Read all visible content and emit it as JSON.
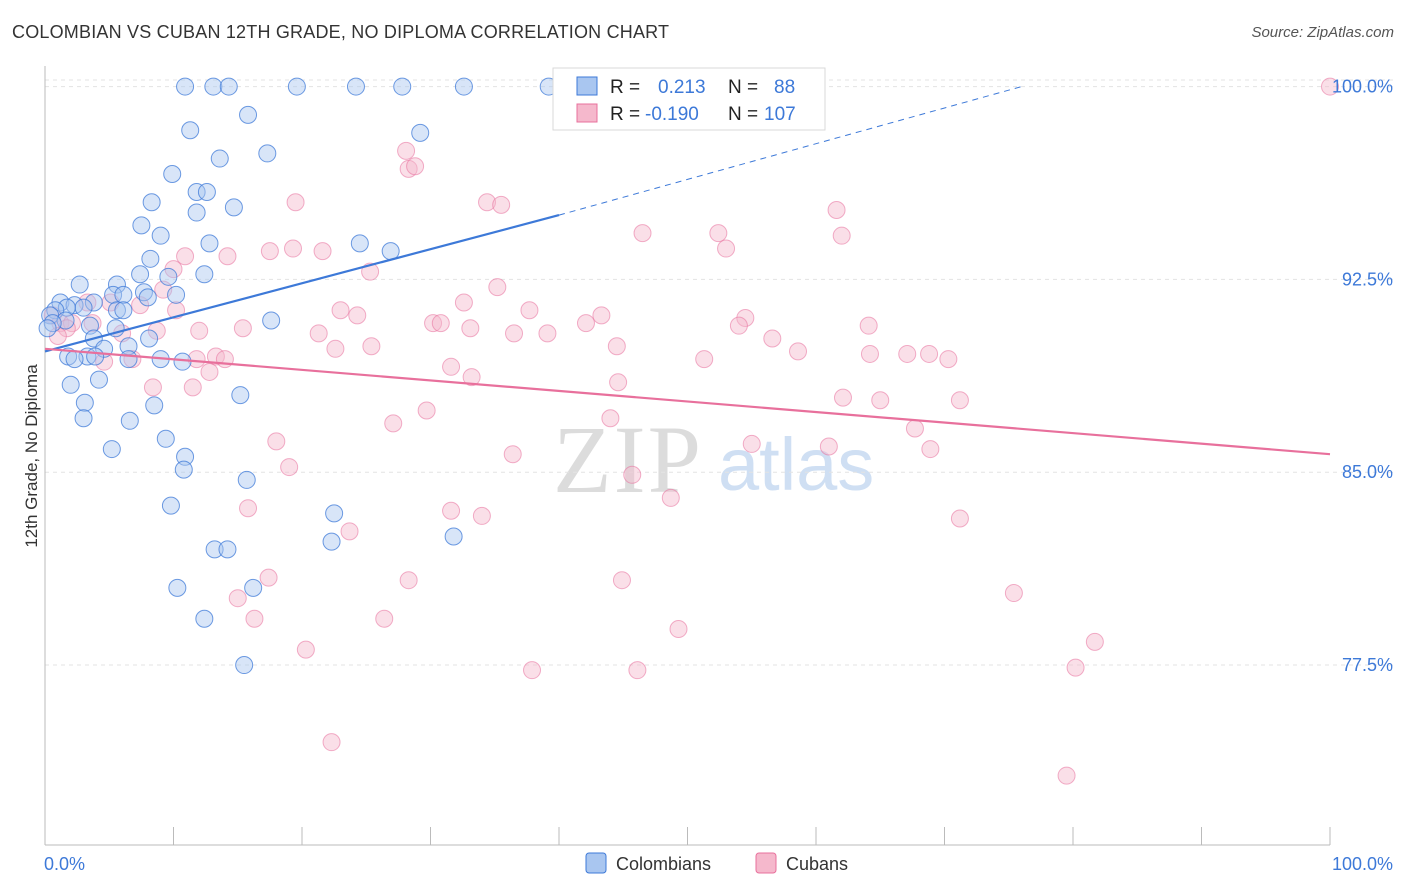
{
  "title": "COLOMBIAN VS CUBAN 12TH GRADE, NO DIPLOMA CORRELATION CHART",
  "source": "Source: ZipAtlas.com",
  "watermark": {
    "zip": "ZIP",
    "atlas": "atlas"
  },
  "colors": {
    "blue": "#3d79d8",
    "blue_fill": "#a9c6f0",
    "pink": "#e8709c",
    "pink_fill": "#f5b8cc",
    "axis_label": "#3d79d8"
  },
  "stats": {
    "row1": {
      "r_label": "R =",
      "r_value": "0.213",
      "n_label": "N =",
      "n_value": "88"
    },
    "row2": {
      "r_label": "R =",
      "r_value": "-0.190",
      "n_label": "N =",
      "n_value": "107"
    }
  },
  "legend": {
    "series1": "Colombians",
    "series2": "Cubans"
  },
  "chart_data": {
    "type": "scatter",
    "ylabel": "12th Grade, No Diploma",
    "xlabel": "",
    "x_tick_labels": [
      "0.0%",
      "100.0%"
    ],
    "y_tick_labels": [
      "100.0%",
      "92.5%",
      "85.0%",
      "77.5%"
    ],
    "y_ticks": [
      100.0,
      92.5,
      85.0,
      77.5
    ],
    "xlim": [
      0,
      100
    ],
    "ylim": [
      70.5,
      100.8
    ],
    "grid": true,
    "legend_position": "bottom-center",
    "series": [
      {
        "name": "Colombians",
        "r": 0.213,
        "n": 88,
        "trend": {
          "x0": 0,
          "y0": 89.7,
          "x1": 40,
          "y1": 95.0,
          "dashed_to": {
            "x": 76,
            "y": 100.0
          }
        },
        "points": [
          [
            10.9,
            100.0
          ],
          [
            13.1,
            100.0
          ],
          [
            14.3,
            100.0
          ],
          [
            19.6,
            100.0
          ],
          [
            24.2,
            100.0
          ],
          [
            27.8,
            100.0
          ],
          [
            32.6,
            100.0
          ],
          [
            39.2,
            100.0
          ],
          [
            11.3,
            98.3
          ],
          [
            15.8,
            98.9
          ],
          [
            29.2,
            98.2
          ],
          [
            13.6,
            97.2
          ],
          [
            17.3,
            97.4
          ],
          [
            9.9,
            96.6
          ],
          [
            11.8,
            95.9
          ],
          [
            12.6,
            95.9
          ],
          [
            8.3,
            95.5
          ],
          [
            11.8,
            95.1
          ],
          [
            14.7,
            95.3
          ],
          [
            7.5,
            94.6
          ],
          [
            9.0,
            94.2
          ],
          [
            12.8,
            93.9
          ],
          [
            24.5,
            93.9
          ],
          [
            26.9,
            93.6
          ],
          [
            8.2,
            93.3
          ],
          [
            7.4,
            92.7
          ],
          [
            9.6,
            92.6
          ],
          [
            12.4,
            92.7
          ],
          [
            2.7,
            92.3
          ],
          [
            5.6,
            92.3
          ],
          [
            7.7,
            92.0
          ],
          [
            5.3,
            91.9
          ],
          [
            6.1,
            91.9
          ],
          [
            3.8,
            91.6
          ],
          [
            8.0,
            91.8
          ],
          [
            10.2,
            91.9
          ],
          [
            1.2,
            91.6
          ],
          [
            2.3,
            91.5
          ],
          [
            3.0,
            91.4
          ],
          [
            1.7,
            91.4
          ],
          [
            0.8,
            91.3
          ],
          [
            0.4,
            91.1
          ],
          [
            5.6,
            91.3
          ],
          [
            6.1,
            91.3
          ],
          [
            1.6,
            90.9
          ],
          [
            0.6,
            90.8
          ],
          [
            0.2,
            90.6
          ],
          [
            3.5,
            90.7
          ],
          [
            5.5,
            90.6
          ],
          [
            17.6,
            90.9
          ],
          [
            3.8,
            90.2
          ],
          [
            8.1,
            90.2
          ],
          [
            6.5,
            89.9
          ],
          [
            4.6,
            89.8
          ],
          [
            1.8,
            89.5
          ],
          [
            3.3,
            89.5
          ],
          [
            2.3,
            89.4
          ],
          [
            3.9,
            89.5
          ],
          [
            6.5,
            89.4
          ],
          [
            9.0,
            89.4
          ],
          [
            10.7,
            89.3
          ],
          [
            2.0,
            88.4
          ],
          [
            4.2,
            88.6
          ],
          [
            15.2,
            88.0
          ],
          [
            8.5,
            87.6
          ],
          [
            3.1,
            87.7
          ],
          [
            3.0,
            87.1
          ],
          [
            6.6,
            87.0
          ],
          [
            9.4,
            86.3
          ],
          [
            5.2,
            85.9
          ],
          [
            10.9,
            85.6
          ],
          [
            15.7,
            84.7
          ],
          [
            10.8,
            85.1
          ],
          [
            9.8,
            83.7
          ],
          [
            22.5,
            83.4
          ],
          [
            31.8,
            82.5
          ],
          [
            22.3,
            82.3
          ],
          [
            13.2,
            82.0
          ],
          [
            14.2,
            82.0
          ],
          [
            10.3,
            80.5
          ],
          [
            16.2,
            80.5
          ],
          [
            12.4,
            79.3
          ],
          [
            15.5,
            77.5
          ]
        ]
      },
      {
        "name": "Cubans",
        "r": -0.19,
        "n": 107,
        "trend": {
          "x0": 0,
          "y0": 89.8,
          "x1": 100,
          "y1": 85.7
        },
        "points": [
          [
            100.0,
            100.0
          ],
          [
            28.1,
            97.5
          ],
          [
            28.3,
            96.8
          ],
          [
            28.8,
            96.9
          ],
          [
            34.4,
            95.5
          ],
          [
            35.5,
            95.4
          ],
          [
            19.5,
            95.5
          ],
          [
            61.6,
            95.2
          ],
          [
            46.5,
            94.3
          ],
          [
            52.4,
            94.3
          ],
          [
            62.0,
            94.2
          ],
          [
            53.0,
            93.7
          ],
          [
            17.5,
            93.6
          ],
          [
            19.3,
            93.7
          ],
          [
            21.6,
            93.6
          ],
          [
            10.9,
            93.4
          ],
          [
            14.2,
            93.4
          ],
          [
            10.0,
            92.9
          ],
          [
            25.3,
            92.8
          ],
          [
            35.2,
            92.2
          ],
          [
            9.2,
            92.1
          ],
          [
            3.3,
            91.6
          ],
          [
            5.1,
            91.6
          ],
          [
            7.4,
            91.5
          ],
          [
            10.2,
            91.3
          ],
          [
            23.0,
            91.3
          ],
          [
            24.3,
            91.1
          ],
          [
            32.6,
            91.6
          ],
          [
            37.7,
            91.3
          ],
          [
            43.3,
            91.1
          ],
          [
            42.1,
            90.8
          ],
          [
            30.2,
            90.8
          ],
          [
            30.8,
            90.8
          ],
          [
            54.5,
            91.0
          ],
          [
            54.0,
            90.7
          ],
          [
            64.1,
            90.7
          ],
          [
            0.6,
            91.1
          ],
          [
            1.2,
            90.8
          ],
          [
            2.1,
            90.8
          ],
          [
            3.7,
            90.8
          ],
          [
            1.7,
            90.6
          ],
          [
            1.0,
            90.3
          ],
          [
            6.0,
            90.4
          ],
          [
            8.7,
            90.5
          ],
          [
            12.0,
            90.5
          ],
          [
            15.4,
            90.6
          ],
          [
            21.3,
            90.4
          ],
          [
            33.1,
            90.6
          ],
          [
            36.5,
            90.4
          ],
          [
            39.1,
            90.4
          ],
          [
            22.6,
            89.8
          ],
          [
            25.4,
            89.9
          ],
          [
            44.5,
            89.9
          ],
          [
            56.6,
            90.2
          ],
          [
            58.6,
            89.7
          ],
          [
            64.2,
            89.6
          ],
          [
            67.1,
            89.6
          ],
          [
            68.8,
            89.6
          ],
          [
            70.3,
            89.4
          ],
          [
            4.6,
            89.3
          ],
          [
            6.8,
            89.4
          ],
          [
            11.8,
            89.4
          ],
          [
            13.3,
            89.5
          ],
          [
            14.0,
            89.4
          ],
          [
            12.8,
            88.9
          ],
          [
            31.6,
            89.1
          ],
          [
            33.2,
            88.7
          ],
          [
            44.6,
            88.5
          ],
          [
            51.3,
            89.4
          ],
          [
            8.4,
            88.3
          ],
          [
            11.5,
            88.3
          ],
          [
            62.1,
            87.9
          ],
          [
            65.0,
            87.8
          ],
          [
            71.2,
            87.8
          ],
          [
            29.7,
            87.4
          ],
          [
            44.0,
            87.1
          ],
          [
            27.1,
            86.9
          ],
          [
            67.7,
            86.7
          ],
          [
            18.0,
            86.2
          ],
          [
            55.0,
            86.1
          ],
          [
            61.0,
            86.0
          ],
          [
            36.4,
            85.7
          ],
          [
            68.9,
            85.9
          ],
          [
            19.0,
            85.2
          ],
          [
            45.7,
            84.9
          ],
          [
            48.7,
            84.0
          ],
          [
            15.8,
            83.6
          ],
          [
            31.6,
            83.5
          ],
          [
            34.0,
            83.3
          ],
          [
            71.2,
            83.2
          ],
          [
            23.7,
            82.7
          ],
          [
            17.4,
            80.9
          ],
          [
            28.3,
            80.8
          ],
          [
            44.9,
            80.8
          ],
          [
            75.4,
            80.3
          ],
          [
            15.0,
            80.1
          ],
          [
            16.3,
            79.3
          ],
          [
            26.4,
            79.3
          ],
          [
            49.3,
            78.9
          ],
          [
            81.7,
            78.4
          ],
          [
            20.3,
            78.1
          ],
          [
            37.9,
            77.3
          ],
          [
            46.1,
            77.3
          ],
          [
            80.2,
            77.4
          ],
          [
            22.3,
            74.5
          ],
          [
            79.5,
            73.2
          ]
        ]
      }
    ]
  }
}
